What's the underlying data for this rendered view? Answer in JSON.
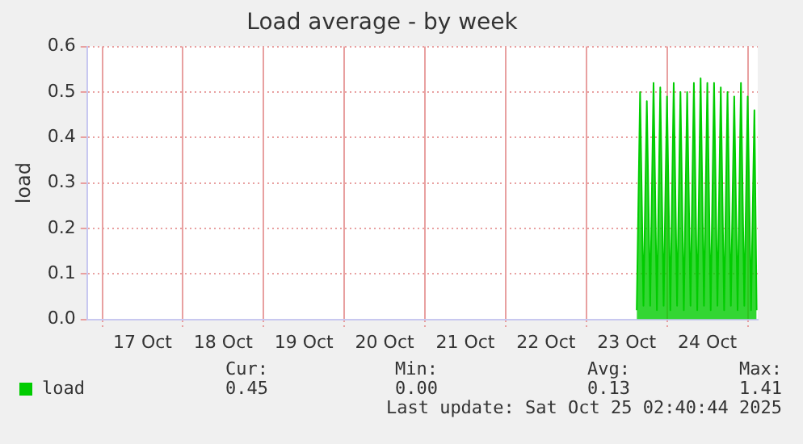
{
  "chart_data": {
    "type": "area",
    "title": "Load average - by week",
    "ylabel": "load",
    "x": [
      "2025-10-23T15:00",
      "2025-10-23T16:00",
      "2025-10-23T17:00",
      "2025-10-23T18:00",
      "2025-10-23T19:00",
      "2025-10-23T20:00",
      "2025-10-23T21:00",
      "2025-10-23T22:00",
      "2025-10-23T23:00",
      "2025-10-24T00:00",
      "2025-10-24T01:00",
      "2025-10-24T02:00",
      "2025-10-24T03:00",
      "2025-10-24T04:00",
      "2025-10-24T05:00",
      "2025-10-24T06:00",
      "2025-10-24T07:00",
      "2025-10-24T08:00",
      "2025-10-24T09:00",
      "2025-10-24T10:00",
      "2025-10-24T11:00",
      "2025-10-24T12:00",
      "2025-10-24T13:00",
      "2025-10-24T14:00",
      "2025-10-24T15:00",
      "2025-10-24T16:00",
      "2025-10-24T17:00",
      "2025-10-24T18:00",
      "2025-10-24T19:00",
      "2025-10-24T20:00",
      "2025-10-24T21:00",
      "2025-10-24T22:00",
      "2025-10-24T23:00",
      "2025-10-25T00:00",
      "2025-10-25T01:00",
      "2025-10-25T02:00",
      "2025-10-25T02:40"
    ],
    "series": [
      {
        "name": "load",
        "color": "#00cc00",
        "values": [
          0.02,
          0.5,
          0.03,
          0.48,
          0.03,
          0.52,
          0.02,
          0.51,
          0.03,
          0.49,
          0.02,
          0.52,
          0.03,
          0.5,
          0.02,
          0.5,
          0.03,
          0.52,
          0.02,
          0.53,
          0.03,
          0.52,
          0.02,
          0.52,
          0.03,
          0.51,
          0.02,
          0.5,
          0.03,
          0.49,
          0.02,
          0.52,
          0.03,
          0.49,
          0.02,
          0.46,
          0.02
        ]
      }
    ],
    "xlim": [
      "2025-10-16T19:30",
      "2025-10-25T03:00"
    ],
    "xticks": [
      {
        "value": "2025-10-17T00:00",
        "label": null
      },
      {
        "value": "2025-10-17T12:00",
        "label": "17 Oct"
      },
      {
        "value": "2025-10-18T00:00",
        "label": null
      },
      {
        "value": "2025-10-18T12:00",
        "label": "18 Oct"
      },
      {
        "value": "2025-10-19T00:00",
        "label": null
      },
      {
        "value": "2025-10-19T12:00",
        "label": "19 Oct"
      },
      {
        "value": "2025-10-20T00:00",
        "label": null
      },
      {
        "value": "2025-10-20T12:00",
        "label": "20 Oct"
      },
      {
        "value": "2025-10-21T00:00",
        "label": null
      },
      {
        "value": "2025-10-21T12:00",
        "label": "21 Oct"
      },
      {
        "value": "2025-10-22T00:00",
        "label": null
      },
      {
        "value": "2025-10-22T12:00",
        "label": "22 Oct"
      },
      {
        "value": "2025-10-23T00:00",
        "label": null
      },
      {
        "value": "2025-10-23T12:00",
        "label": "23 Oct"
      },
      {
        "value": "2025-10-24T00:00",
        "label": null
      },
      {
        "value": "2025-10-24T12:00",
        "label": "24 Oct"
      },
      {
        "value": "2025-10-25T00:00",
        "label": null
      }
    ],
    "ylim": [
      0,
      0.6
    ],
    "yticks": [
      {
        "value": 0,
        "label": "0.0"
      },
      {
        "value": 0.1,
        "label": "0.1"
      },
      {
        "value": 0.2,
        "label": "0.2"
      },
      {
        "value": 0.3,
        "label": "0.3"
      },
      {
        "value": 0.4,
        "label": "0.4"
      },
      {
        "value": 0.5,
        "label": "0.5"
      },
      {
        "value": 0.6,
        "label": "0.6"
      }
    ],
    "grid": true,
    "legend": "bottom left",
    "annotations": [
      "Cur:",
      "Min:",
      "Avg:",
      "Max:",
      "0.45",
      "0.00",
      "0.13",
      "1.41",
      "Last update: Sat Oct 25 02:40:44 2025"
    ]
  }
}
